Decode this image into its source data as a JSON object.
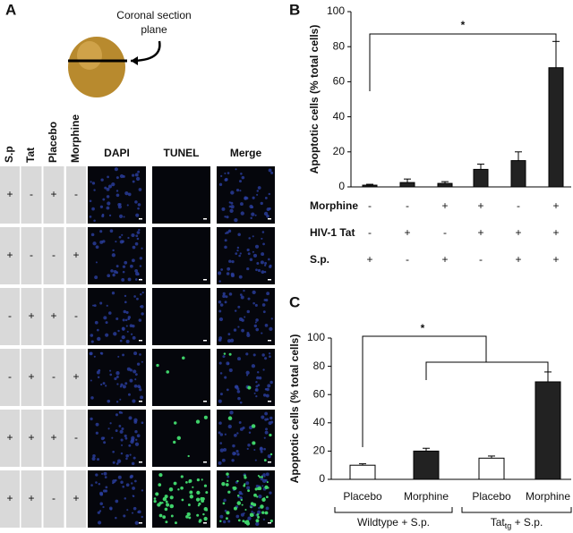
{
  "panel_a": {
    "label": "A",
    "brain_caption": [
      "Coronal section",
      "plane"
    ],
    "condition_headers": [
      "S.p",
      "Tat",
      "Placebo",
      "Morphine"
    ],
    "image_headers": [
      "DAPI",
      "TUNEL",
      "Merge"
    ],
    "rows": [
      [
        "+",
        "-",
        "+",
        "-"
      ],
      [
        "+",
        "-",
        "-",
        "+"
      ],
      [
        "-",
        "+",
        "+",
        "-"
      ],
      [
        "-",
        "+",
        "-",
        "+"
      ],
      [
        "+",
        "+",
        "+",
        "-"
      ],
      [
        "+",
        "+",
        "-",
        "+"
      ]
    ]
  },
  "chart_data": [
    {
      "type": "bar",
      "panel_label": "B",
      "y_label": "Apoptotic cells (% total cells)",
      "conditions": [
        {
          "name": "Morphine",
          "values": [
            "-",
            "-",
            "+",
            "+",
            "-",
            "+"
          ]
        },
        {
          "name": "HIV-1 Tat",
          "values": [
            "-",
            "+",
            "-",
            "+",
            "+",
            "+"
          ]
        },
        {
          "name": "S.p.",
          "values": [
            "+",
            "-",
            "+",
            "-",
            "+",
            "+"
          ]
        }
      ],
      "values": [
        1,
        2.5,
        2,
        10,
        15,
        68
      ],
      "errors": [
        0.5,
        2,
        1,
        3,
        5,
        15
      ],
      "colors": [
        "#222222",
        "#222222",
        "#222222",
        "#222222",
        "#222222",
        "#222222"
      ],
      "ylim": [
        0,
        100
      ],
      "yticks": [
        0,
        20,
        40,
        60,
        80,
        100
      ],
      "significance_label": "*"
    },
    {
      "type": "bar",
      "panel_label": "C",
      "y_label": "Apoptotic cells (% total cells)",
      "categories": [
        "Placebo",
        "Morphine",
        "Placebo",
        "Morphine"
      ],
      "values": [
        10,
        20,
        15,
        69
      ],
      "errors": [
        1,
        2,
        1.5,
        7
      ],
      "colors": [
        "#ffffff",
        "#222222",
        "#ffffff",
        "#222222"
      ],
      "groups": [
        {
          "label": "Wildtype + S.p."
        },
        {
          "label": "Tat",
          "subscript": "tg",
          "suffix": " + S.p."
        }
      ],
      "ylim": [
        0,
        100
      ],
      "yticks": [
        0,
        20,
        40,
        60,
        80,
        100
      ],
      "significance_label": "*"
    }
  ]
}
